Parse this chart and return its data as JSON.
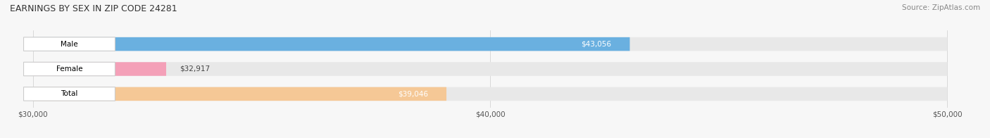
{
  "title": "EARNINGS BY SEX IN ZIP CODE 24281",
  "source": "Source: ZipAtlas.com",
  "categories": [
    "Male",
    "Female",
    "Total"
  ],
  "values": [
    43056,
    32917,
    39046
  ],
  "bar_colors": [
    "#6ab0e0",
    "#f4a0b8",
    "#f5c896"
  ],
  "bar_bg_color": "#e8e8e8",
  "xmin": 30000,
  "xmax": 50000,
  "xticks": [
    30000,
    40000,
    50000
  ],
  "xtick_labels": [
    "$30,000",
    "$40,000",
    "$50,000"
  ],
  "value_labels": [
    "$43,056",
    "$32,917",
    "$39,046"
  ],
  "figsize": [
    14.06,
    1.96
  ],
  "dpi": 100,
  "background_color": "#f7f7f7"
}
